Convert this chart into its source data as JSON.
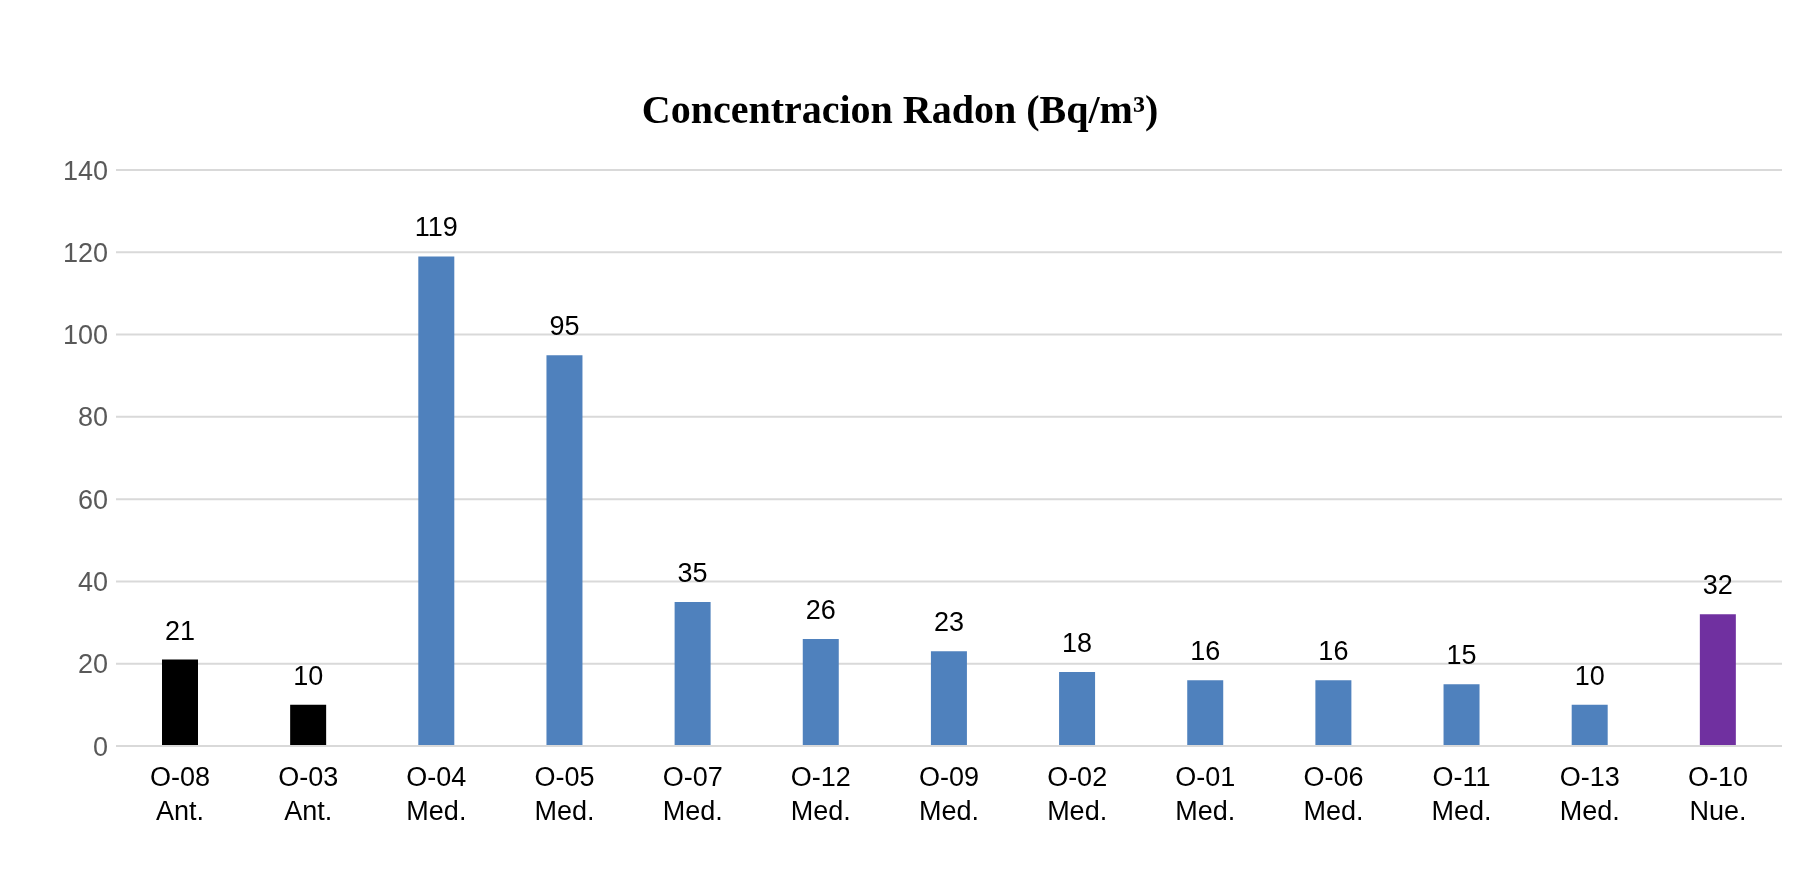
{
  "chart_data": {
    "type": "bar",
    "title": "Concentracion Radon (Bq/m³)",
    "categories": [
      "O-08\nAnt.",
      "O-03\nAnt.",
      "O-04\nMed.",
      "O-05\nMed.",
      "O-07\nMed.",
      "O-12\nMed.",
      "O-09\nMed.",
      "O-02\nMed.",
      "O-01\nMed.",
      "O-06\nMed.",
      "O-11\nMed.",
      "O-13\nMed.",
      "O-10\nNue."
    ],
    "values": [
      21,
      10,
      119,
      95,
      35,
      26,
      23,
      18,
      16,
      16,
      15,
      10,
      32
    ],
    "colors": [
      "#000000",
      "#000000",
      "#4f81bd",
      "#4f81bd",
      "#4f81bd",
      "#4f81bd",
      "#4f81bd",
      "#4f81bd",
      "#4f81bd",
      "#4f81bd",
      "#4f81bd",
      "#4f81bd",
      "#7030a0"
    ],
    "ylim": [
      0,
      140
    ],
    "yticks": [
      0,
      20,
      40,
      60,
      80,
      100,
      120,
      140
    ],
    "grid": "y",
    "data_labels": true
  }
}
